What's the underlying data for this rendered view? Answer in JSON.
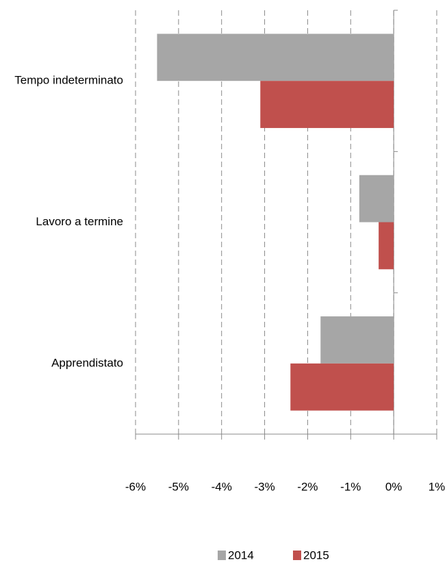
{
  "chart_data": {
    "type": "hbar",
    "categories": [
      "Tempo indeterminato",
      "Lavoro a termine",
      "Apprendistato"
    ],
    "series": [
      {
        "name": "2014",
        "color": "#a6a6a6",
        "values": [
          -5.5,
          -0.8,
          -1.7
        ]
      },
      {
        "name": "2015",
        "color": "#c0504d",
        "values": [
          -3.1,
          -0.35,
          -2.4
        ]
      }
    ],
    "xlim": [
      -6,
      1
    ],
    "xticks": [
      {
        "value": -6,
        "label": "-6%"
      },
      {
        "value": -5,
        "label": "-5%"
      },
      {
        "value": -4,
        "label": "-4%"
      },
      {
        "value": -3,
        "label": "-3%"
      },
      {
        "value": -2,
        "label": "-2%"
      },
      {
        "value": -1,
        "label": "-1%"
      },
      {
        "value": 0,
        "label": "0%"
      },
      {
        "value": 1,
        "label": "1%"
      }
    ],
    "grid": true,
    "legend": "bottom"
  }
}
